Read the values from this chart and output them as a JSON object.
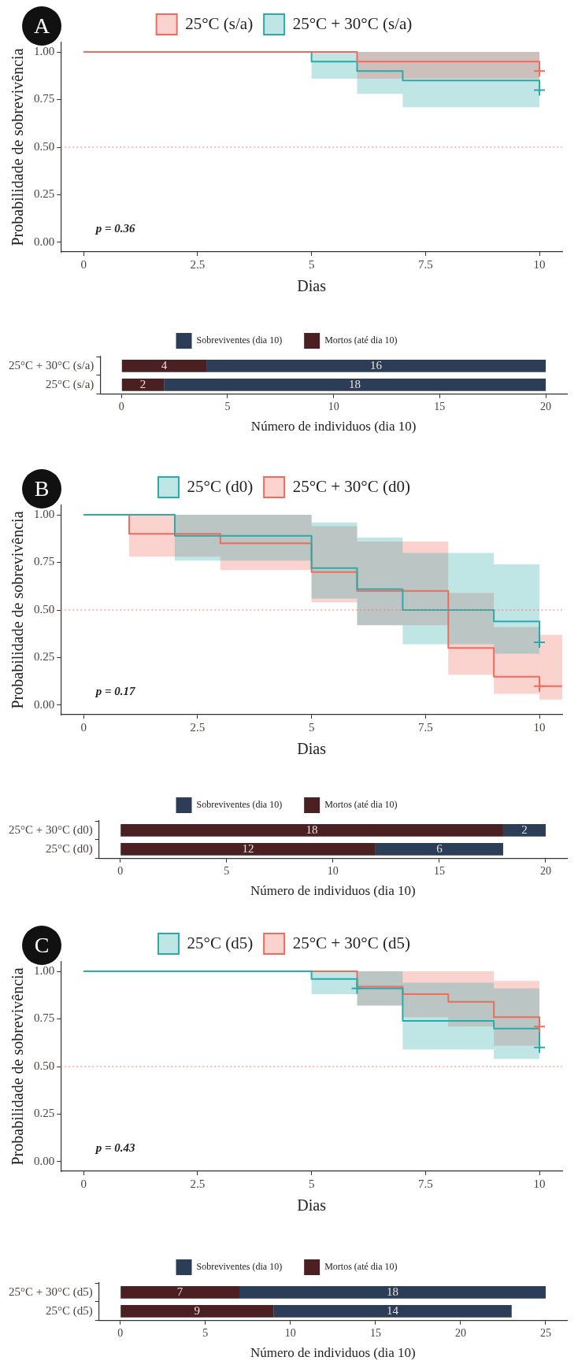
{
  "chart_data": [
    {
      "type": "step",
      "title": "A",
      "xlabel": "Dias",
      "ylabel": "Probabilidade de sobrevivência",
      "annotations": [
        "p = 0.36"
      ],
      "xlim": [
        -0.5,
        10.5
      ],
      "ylim": [
        -0.05,
        1.05
      ],
      "xticks": [
        0,
        2.5,
        5,
        7.5,
        10
      ],
      "yticks": [
        {
          "value": 0,
          "label": "0.00"
        },
        {
          "value": 0.25,
          "label": "0.25"
        },
        {
          "value": 0.5,
          "label": "0.50"
        },
        {
          "value": 0.75,
          "label": "0.75"
        },
        {
          "value": 1,
          "label": "1.00"
        }
      ],
      "grid": false,
      "legend": "top",
      "ref_lines": [
        {
          "axis": "y",
          "value": 0.5,
          "color": "#f8766d",
          "line_style": "dotted"
        }
      ],
      "series": [
        {
          "name": "25°C (s/a)",
          "color": "#ee6b5e",
          "type": "step",
          "x": [
            0,
            6,
            10
          ],
          "values": [
            1,
            0.95,
            0.9
          ],
          "lower": [
            1,
            0.86,
            0.86
          ],
          "upper": [
            1,
            1,
            1
          ]
        },
        {
          "name": "25°C + 30°C (s/a)",
          "color": "#2aaaa8",
          "type": "step",
          "x": [
            0,
            5,
            6,
            7,
            10
          ],
          "values": [
            1,
            0.95,
            0.9,
            0.85,
            0.8
          ],
          "lower": [
            1,
            0.86,
            0.78,
            0.71,
            0.71
          ],
          "upper": [
            1,
            1,
            1,
            1,
            1
          ]
        },
        {
          "type": "scatter",
          "marker": "cross",
          "color": "#ee6b5e",
          "x": [
            10
          ],
          "values": [
            0.9
          ]
        },
        {
          "type": "scatter",
          "marker": "cross",
          "color": "#2aaaa8",
          "x": [
            10
          ],
          "values": [
            0.8
          ]
        }
      ]
    },
    {
      "type": "bar",
      "orientation": "horizontal",
      "stacked": true,
      "data_labels": true,
      "legend": "top",
      "grid": false,
      "xlabel": "Número de individuos (dia 10)",
      "categories": [
        "25°C + 30°C (s/a)",
        "25°C (s/a)"
      ],
      "xlim": [
        -1,
        21
      ],
      "xticks": [
        0,
        5,
        10,
        15,
        20
      ],
      "series": [
        {
          "name": "Mortos (até dia 10)",
          "color": "#4a2022",
          "values": [
            4,
            2
          ]
        },
        {
          "name": "Sobreviventes (dia 10)",
          "color": "#2c3e57",
          "values": [
            16,
            18
          ]
        }
      ]
    },
    {
      "type": "step",
      "title": "B",
      "xlabel": "Dias",
      "ylabel": "Probabilidade de sobrevivência",
      "annotations": [
        "p = 0.17"
      ],
      "xlim": [
        -0.5,
        10.5
      ],
      "ylim": [
        -0.05,
        1.05
      ],
      "xticks": [
        0,
        2.5,
        5,
        7.5,
        10
      ],
      "yticks": [
        {
          "value": 0,
          "label": "0.00"
        },
        {
          "value": 0.25,
          "label": "0.25"
        },
        {
          "value": 0.5,
          "label": "0.50"
        },
        {
          "value": 0.75,
          "label": "0.75"
        },
        {
          "value": 1,
          "label": "1.00"
        }
      ],
      "grid": false,
      "legend": "top",
      "ref_lines": [
        {
          "axis": "y",
          "value": 0.5,
          "color": "#f8766d",
          "line_style": "dotted"
        }
      ],
      "series": [
        {
          "name": "25°C (d0)",
          "color": "#2aaaa8",
          "type": "step",
          "x": [
            0,
            2,
            5,
            6,
            7,
            9,
            10
          ],
          "values": [
            1,
            0.89,
            0.72,
            0.61,
            0.5,
            0.44,
            0.33
          ],
          "lower": [
            1,
            0.76,
            0.56,
            0.42,
            0.32,
            0.27,
            0.27
          ],
          "upper": [
            1,
            1,
            0.96,
            0.88,
            0.8,
            0.74,
            0.74
          ]
        },
        {
          "name": "25°C + 30°C (d0)",
          "color": "#ee6b5e",
          "type": "step",
          "x": [
            0,
            1,
            3,
            5,
            6,
            8,
            9,
            10,
            10.5
          ],
          "values": [
            1,
            0.9,
            0.85,
            0.7,
            0.6,
            0.3,
            0.15,
            0.1,
            0.1
          ],
          "lower": [
            1,
            0.78,
            0.71,
            0.54,
            0.42,
            0.16,
            0.06,
            0.03,
            0.03
          ],
          "upper": [
            1,
            1,
            1,
            0.94,
            0.86,
            0.59,
            0.41,
            0.37,
            0.37
          ]
        },
        {
          "type": "scatter",
          "marker": "cross",
          "color": "#2aaaa8",
          "x": [
            10
          ],
          "values": [
            0.33
          ]
        },
        {
          "type": "scatter",
          "marker": "cross",
          "color": "#ee6b5e",
          "x": [
            10
          ],
          "values": [
            0.1
          ]
        }
      ]
    },
    {
      "type": "bar",
      "orientation": "horizontal",
      "stacked": true,
      "data_labels": true,
      "legend": "top",
      "grid": false,
      "xlabel": "Número de individuos (dia 10)",
      "categories": [
        "25°C + 30°C (d0)",
        "25°C (d0)"
      ],
      "xlim": [
        -1,
        21
      ],
      "xticks": [
        0,
        5,
        10,
        15,
        20
      ],
      "series": [
        {
          "name": "Mortos (até dia 10)",
          "color": "#4a2022",
          "values": [
            18,
            12
          ]
        },
        {
          "name": "Sobreviventes (dia 10)",
          "color": "#2c3e57",
          "values": [
            2,
            6
          ]
        }
      ]
    },
    {
      "type": "step",
      "title": "C",
      "xlabel": "Dias",
      "ylabel": "Probabilidade de sobrevivência",
      "annotations": [
        "p = 0.43"
      ],
      "xlim": [
        -0.5,
        10.5
      ],
      "ylim": [
        -0.05,
        1.05
      ],
      "xticks": [
        0,
        2.5,
        5,
        7.5,
        10
      ],
      "yticks": [
        {
          "value": 0,
          "label": "0.00"
        },
        {
          "value": 0.25,
          "label": "0.25"
        },
        {
          "value": 0.5,
          "label": "0.50"
        },
        {
          "value": 0.75,
          "label": "0.75"
        },
        {
          "value": 1,
          "label": "1.00"
        }
      ],
      "grid": false,
      "legend": "top",
      "ref_lines": [
        {
          "axis": "y",
          "value": 0.5,
          "color": "#f8766d",
          "line_style": "dotted"
        }
      ],
      "series": [
        {
          "name": "25°C (d5)",
          "color": "#2aaaa8",
          "type": "step",
          "x": [
            0,
            5,
            6,
            7,
            9,
            10
          ],
          "values": [
            1,
            0.96,
            0.91,
            0.74,
            0.7,
            0.6
          ],
          "lower": [
            1,
            0.88,
            0.82,
            0.59,
            0.54,
            0.54
          ],
          "upper": [
            1,
            1,
            1,
            0.94,
            0.91,
            0.91
          ]
        },
        {
          "name": "25°C + 30°C (d5)",
          "color": "#ee6b5e",
          "type": "step",
          "x": [
            0,
            6,
            7,
            8,
            9,
            10
          ],
          "values": [
            1,
            0.92,
            0.88,
            0.84,
            0.76,
            0.71
          ],
          "lower": [
            1,
            0.82,
            0.76,
            0.71,
            0.61,
            0.61
          ],
          "upper": [
            1,
            1,
            1,
            1,
            0.95,
            0.95
          ]
        },
        {
          "type": "scatter",
          "marker": "cross",
          "color": "#2aaaa8",
          "x": [
            6,
            10
          ],
          "values": [
            0.91,
            0.6
          ]
        },
        {
          "type": "scatter",
          "marker": "cross",
          "color": "#ee6b5e",
          "x": [
            10
          ],
          "values": [
            0.71
          ]
        }
      ]
    },
    {
      "type": "bar",
      "orientation": "horizontal",
      "stacked": true,
      "data_labels": true,
      "legend": "top",
      "grid": false,
      "xlabel": "Número de individuos (dia 10)",
      "categories": [
        "25°C + 30°C (d5)",
        "25°C (d5)"
      ],
      "xlim": [
        -1.25,
        26.25
      ],
      "xticks": [
        0,
        5,
        10,
        15,
        20,
        25
      ],
      "series": [
        {
          "name": "Mortos (até dia 10)",
          "color": "#4a2022",
          "values": [
            7,
            9
          ]
        },
        {
          "name": "Sobreviventes (dia 10)",
          "color": "#2c3e57",
          "values": [
            18,
            14
          ]
        }
      ]
    }
  ]
}
